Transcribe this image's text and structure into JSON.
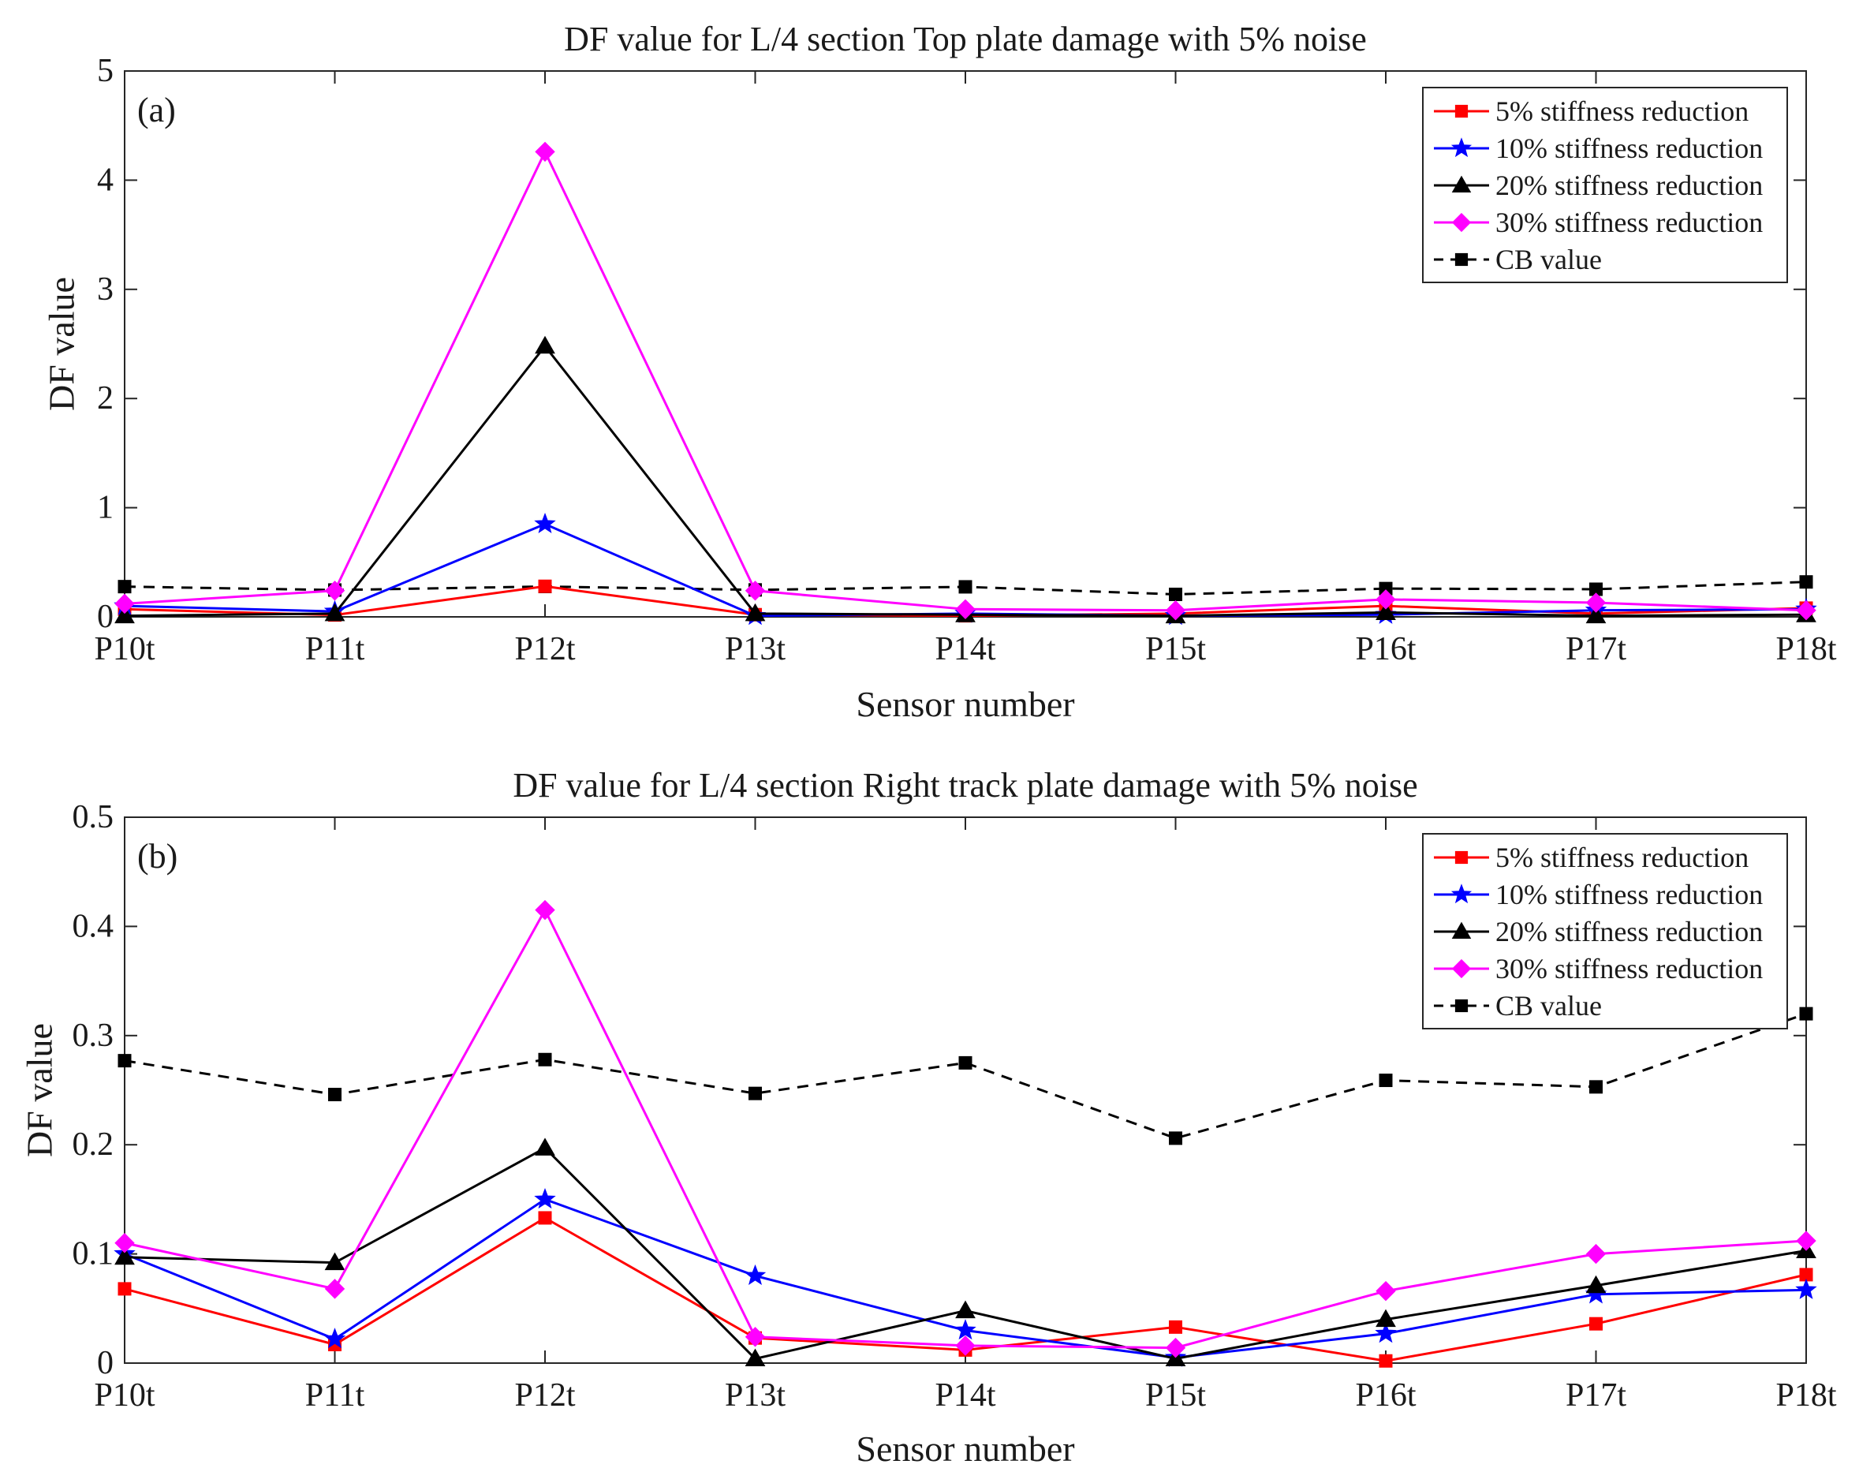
{
  "chart_data": [
    {
      "type": "line",
      "panel_label": "(a)",
      "title": "DF value  for L/4 section Top plate damage with 5% noise",
      "xlabel": "Sensor number",
      "ylabel": "DF value",
      "categories": [
        "P10t",
        "P11t",
        "P12t",
        "P13t",
        "P14t",
        "P15t",
        "P16t",
        "P17t",
        "P18t"
      ],
      "ylim": [
        0,
        5
      ],
      "yticks": [
        0,
        1,
        2,
        3,
        4,
        5
      ],
      "ytick_labels": [
        "0",
        "1",
        "2",
        "3",
        "4",
        "5"
      ],
      "grid": false,
      "legend_position": "top-right",
      "series": [
        {
          "name": "5% stiffness reduction",
          "color": "#ff0000",
          "marker": "square",
          "dash": "solid",
          "values": [
            0.07,
            0.017,
            0.28,
            0.02,
            0.01,
            0.03,
            0.1,
            0.03,
            0.08
          ]
        },
        {
          "name": "10% stiffness reduction",
          "color": "#0000ff",
          "marker": "star",
          "dash": "solid",
          "values": [
            0.1,
            0.05,
            0.85,
            0.01,
            0.03,
            0.01,
            0.02,
            0.06,
            0.07
          ]
        },
        {
          "name": "20% stiffness reduction",
          "color": "#000000",
          "marker": "triangle",
          "dash": "solid",
          "values": [
            0.01,
            0.03,
            2.48,
            0.03,
            0.02,
            0.01,
            0.04,
            0.01,
            0.02
          ]
        },
        {
          "name": "30% stiffness reduction",
          "color": "#ff00ff",
          "marker": "diamond",
          "dash": "solid",
          "values": [
            0.12,
            0.24,
            4.26,
            0.24,
            0.07,
            0.06,
            0.16,
            0.13,
            0.06
          ]
        },
        {
          "name": "CB value",
          "color": "#000000",
          "marker": "square",
          "dash": "dashed",
          "values": [
            0.277,
            0.246,
            0.278,
            0.247,
            0.275,
            0.206,
            0.259,
            0.253,
            0.32
          ]
        }
      ]
    },
    {
      "type": "line",
      "panel_label": "(b)",
      "title": "DF value  for L/4 section Right track plate damage with 5% noise",
      "xlabel": "Sensor number",
      "ylabel": "DF value",
      "categories": [
        "P10t",
        "P11t",
        "P12t",
        "P13t",
        "P14t",
        "P15t",
        "P16t",
        "P17t",
        "P18t"
      ],
      "ylim": [
        0,
        0.5
      ],
      "yticks": [
        0,
        0.1,
        0.2,
        0.3,
        0.4,
        0.5
      ],
      "ytick_labels": [
        "0",
        "0.1",
        "0.2",
        "0.3",
        "0.4",
        "0.5"
      ],
      "grid": false,
      "legend_position": "top-right",
      "series": [
        {
          "name": "5% stiffness reduction",
          "color": "#ff0000",
          "marker": "square",
          "dash": "solid",
          "values": [
            0.068,
            0.017,
            0.133,
            0.023,
            0.012,
            0.033,
            0.002,
            0.036,
            0.081
          ]
        },
        {
          "name": "10% stiffness reduction",
          "color": "#0000ff",
          "marker": "star",
          "dash": "solid",
          "values": [
            0.1,
            0.022,
            0.15,
            0.08,
            0.03,
            0.005,
            0.027,
            0.063,
            0.067
          ]
        },
        {
          "name": "20% stiffness reduction",
          "color": "#000000",
          "marker": "triangle",
          "dash": "solid",
          "values": [
            0.097,
            0.092,
            0.197,
            0.004,
            0.048,
            0.004,
            0.04,
            0.071,
            0.103
          ]
        },
        {
          "name": "30% stiffness reduction",
          "color": "#ff00ff",
          "marker": "diamond",
          "dash": "solid",
          "values": [
            0.11,
            0.068,
            0.415,
            0.024,
            0.016,
            0.014,
            0.066,
            0.1,
            0.112
          ]
        },
        {
          "name": "CB value",
          "color": "#000000",
          "marker": "square",
          "dash": "dashed",
          "values": [
            0.277,
            0.246,
            0.278,
            0.247,
            0.275,
            0.206,
            0.259,
            0.253,
            0.32
          ]
        }
      ]
    }
  ]
}
